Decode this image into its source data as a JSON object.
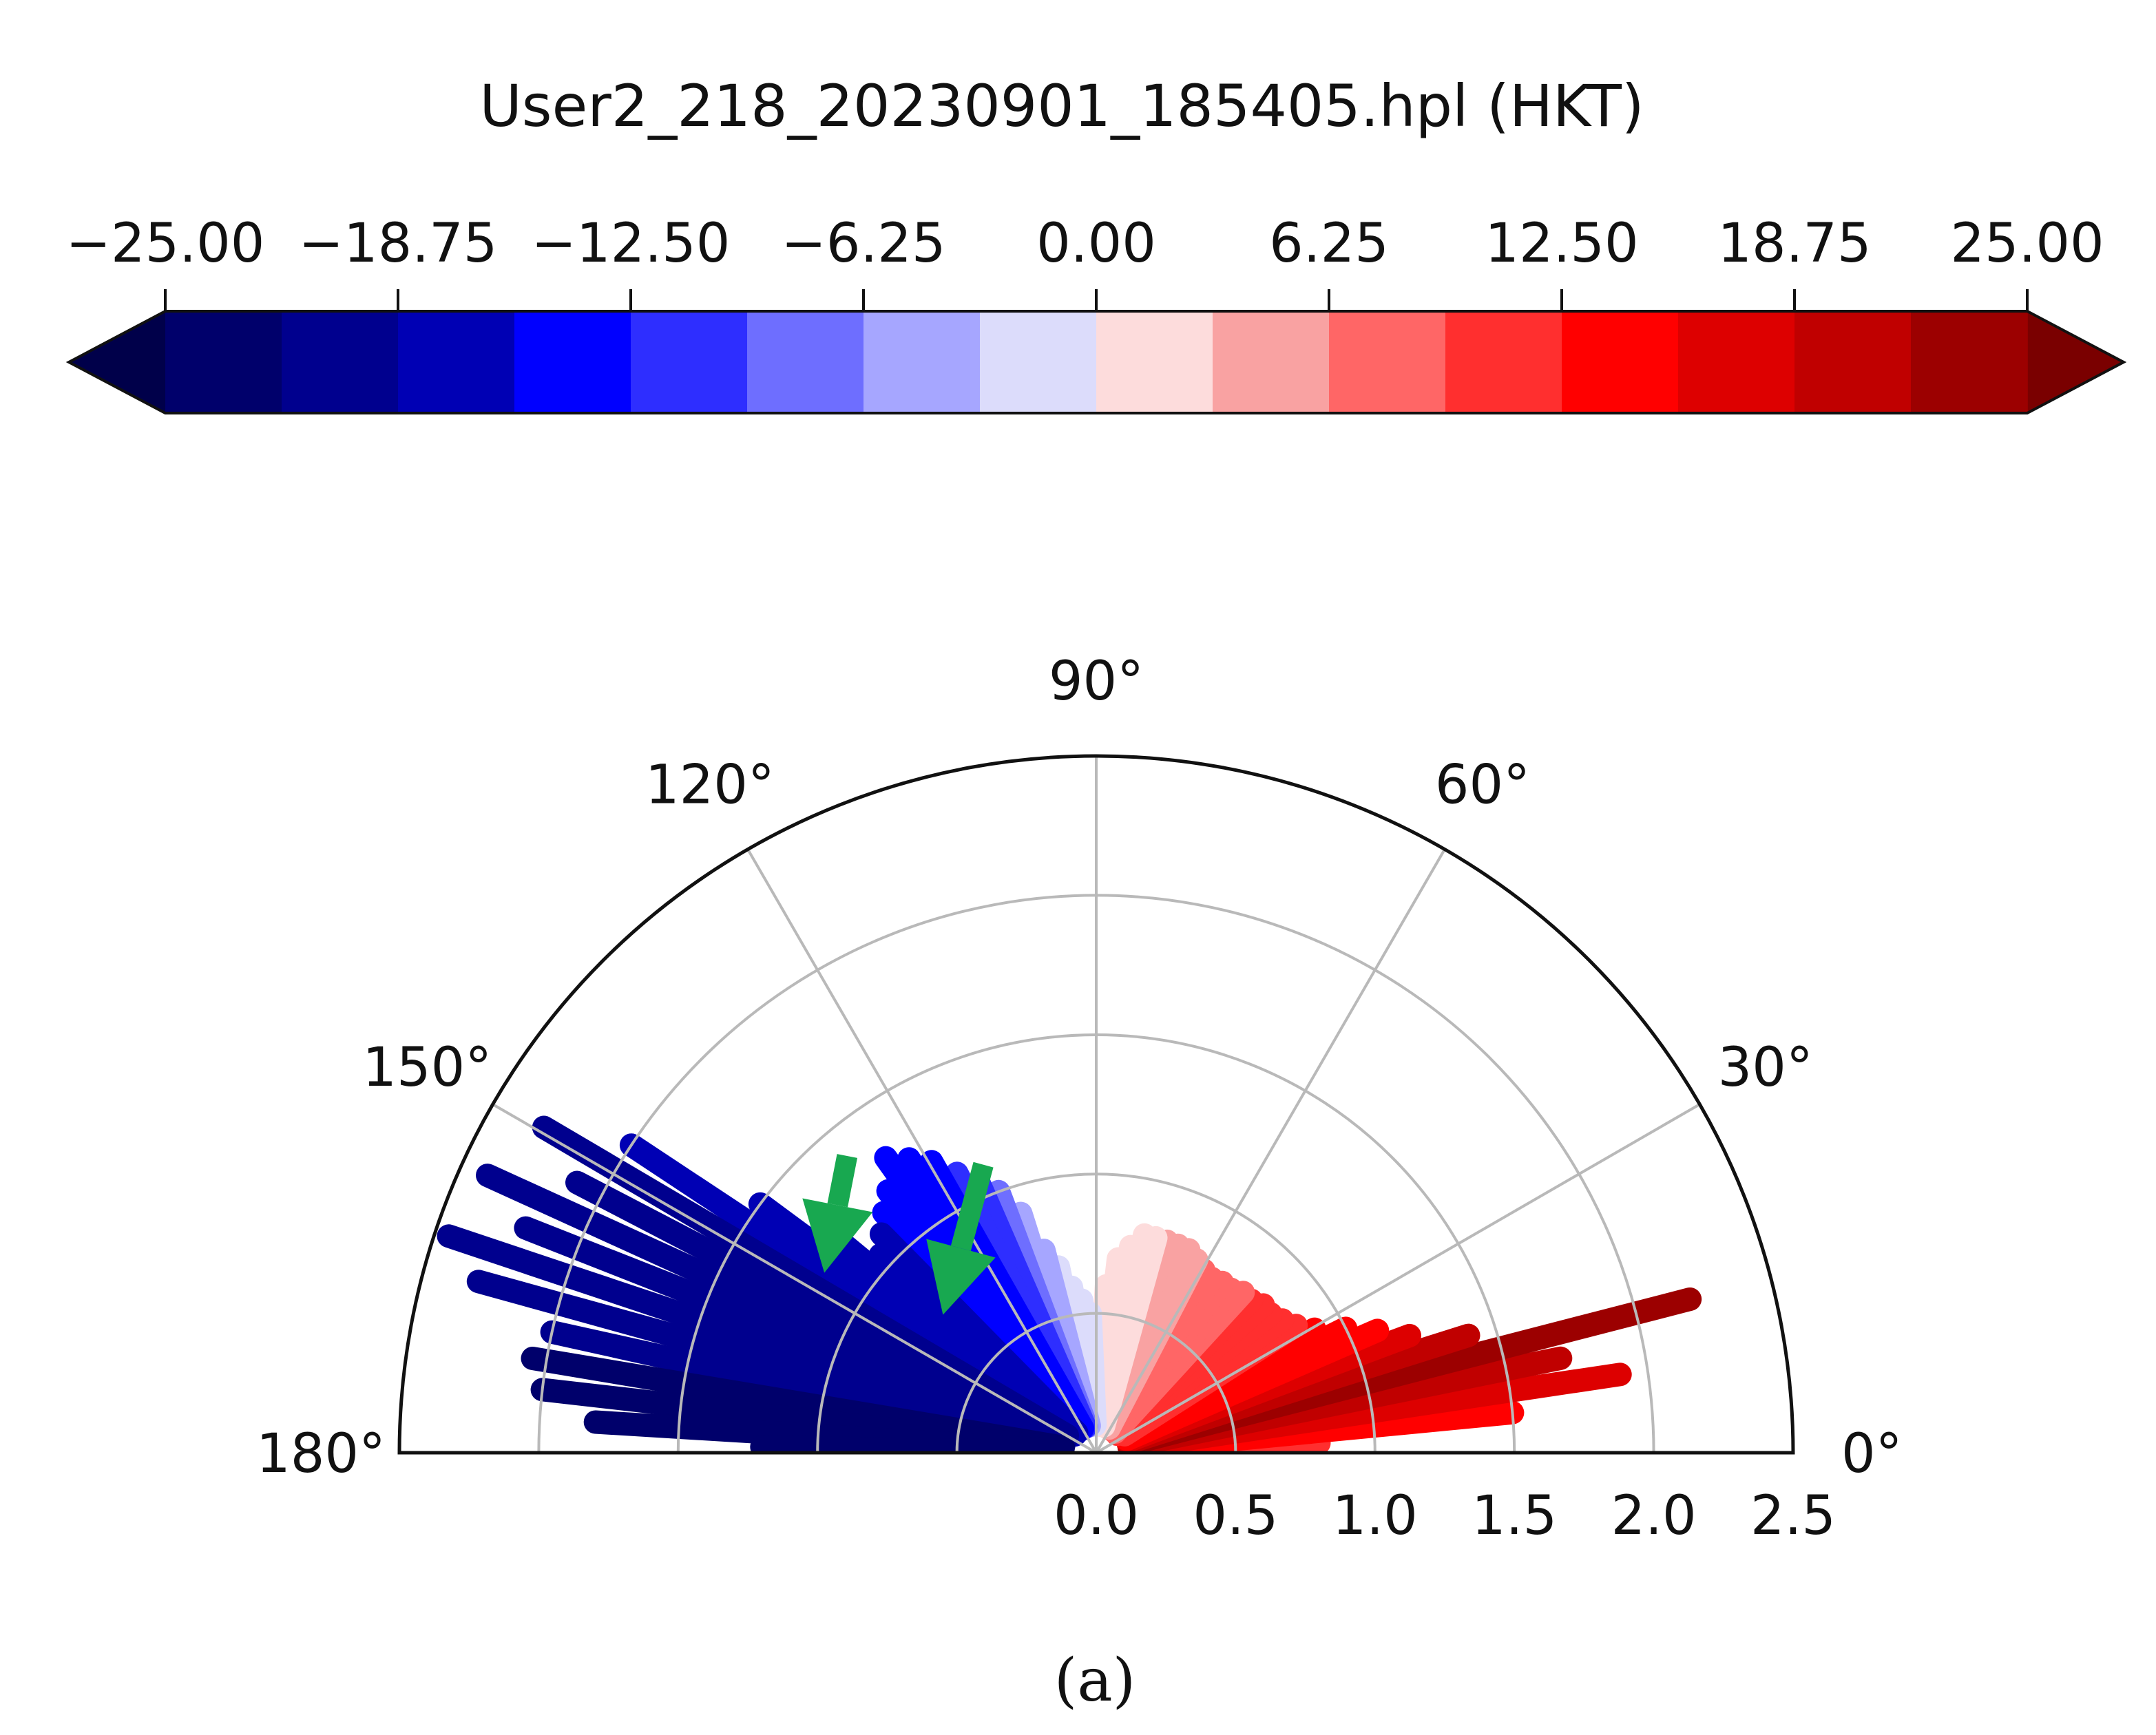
{
  "chart_data": {
    "type": "heatmap",
    "subtype": "polar-semicircle-scan",
    "title": "User2_218_20230901_185405.hpl (HKT)",
    "panel_label": "(a)",
    "colorbar": {
      "orientation": "horizontal",
      "location": "top",
      "extend": "both",
      "vmin": -25.0,
      "vmax": 25.0,
      "tick_values": [
        -25.0,
        -18.75,
        -12.5,
        -6.25,
        0.0,
        6.25,
        12.5,
        18.75,
        25.0
      ],
      "tick_labels": [
        "−25.00",
        "−18.75",
        "−12.50",
        "−6.25",
        "0.00",
        "6.25",
        "12.50",
        "18.75",
        "25.00"
      ],
      "levels": [
        -25.0,
        -21.875,
        -18.75,
        -15.625,
        -12.5,
        -9.375,
        -6.25,
        -3.125,
        0.0,
        3.125,
        6.25,
        9.375,
        12.5,
        15.625,
        18.75,
        21.875,
        25.0
      ],
      "colors": [
        "#00006b",
        "#00008e",
        "#0000b4",
        "#0000ff",
        "#2e2eff",
        "#6e6eff",
        "#a6a6ff",
        "#dcdcfb",
        "#fddcdc",
        "#f9a2a2",
        "#ff6666",
        "#ff2f2f",
        "#ff0000",
        "#dd0000",
        "#c00000",
        "#9c0000"
      ],
      "under_color": "#00004a",
      "over_color": "#7a0000"
    },
    "polar": {
      "theta_range_deg": [
        0,
        180
      ],
      "theta_ticks_deg": [
        0,
        30,
        60,
        90,
        120,
        150,
        180
      ],
      "theta_tick_labels": [
        "0°",
        "30°",
        "60°",
        "90°",
        "120°",
        "150°",
        "180°"
      ],
      "r_range": [
        0.0,
        2.5
      ],
      "r_ticks": [
        0.0,
        0.5,
        1.0,
        1.5,
        2.0,
        2.5
      ],
      "r_tick_labels": [
        "0.0",
        "0.5",
        "1.0",
        "1.5",
        "2.0",
        "2.5"
      ],
      "grid": true
    },
    "beams": [
      {
        "theta": 2.5,
        "r_min": 0.12,
        "r_max": 0.8,
        "value": 10
      },
      {
        "theta": 5.5,
        "r_min": 0.12,
        "r_max": 1.5,
        "value": 14
      },
      {
        "theta": 8.5,
        "r_min": 0.12,
        "r_max": 1.9,
        "value": 17
      },
      {
        "theta": 11.5,
        "r_min": 0.12,
        "r_max": 1.7,
        "value": 19
      },
      {
        "theta": 14.5,
        "r_min": 0.12,
        "r_max": 2.2,
        "value": 22
      },
      {
        "theta": 17.5,
        "r_min": 0.12,
        "r_max": 1.4,
        "value": 19
      },
      {
        "theta": 20.5,
        "r_min": 0.12,
        "r_max": 1.2,
        "value": 17
      },
      {
        "theta": 23.5,
        "r_min": 0.12,
        "r_max": 1.1,
        "value": 15
      },
      {
        "theta": 26.5,
        "r_min": 0.12,
        "r_max": 1.0,
        "value": 14
      },
      {
        "theta": 29.5,
        "r_min": 0.12,
        "r_max": 0.9,
        "value": 13
      },
      {
        "theta": 32.5,
        "r_min": 0.12,
        "r_max": 0.85,
        "value": 12
      },
      {
        "theta": 35.5,
        "r_min": 0.12,
        "r_max": 0.82,
        "value": 12
      },
      {
        "theta": 38.5,
        "r_min": 0.12,
        "r_max": 0.8,
        "value": 11
      },
      {
        "theta": 41.5,
        "r_min": 0.1,
        "r_max": 0.8,
        "value": 10
      },
      {
        "theta": 44.5,
        "r_min": 0.1,
        "r_max": 0.78,
        "value": 10
      },
      {
        "theta": 47.5,
        "r_min": 0.1,
        "r_max": 0.78,
        "value": 9
      },
      {
        "theta": 50.5,
        "r_min": 0.1,
        "r_max": 0.76,
        "value": 8
      },
      {
        "theta": 53.5,
        "r_min": 0.1,
        "r_max": 0.76,
        "value": 8
      },
      {
        "theta": 56.5,
        "r_min": 0.1,
        "r_max": 0.75,
        "value": 7
      },
      {
        "theta": 59.5,
        "r_min": 0.1,
        "r_max": 0.76,
        "value": 7
      },
      {
        "theta": 62.5,
        "r_min": 0.1,
        "r_max": 0.78,
        "value": 6
      },
      {
        "theta": 65.5,
        "r_min": 0.1,
        "r_max": 0.8,
        "value": 5
      },
      {
        "theta": 68.5,
        "r_min": 0.1,
        "r_max": 0.8,
        "value": 4
      },
      {
        "theta": 71.5,
        "r_min": 0.1,
        "r_max": 0.8,
        "value": 4
      },
      {
        "theta": 74.5,
        "r_min": 0.1,
        "r_max": 0.8,
        "value": 3
      },
      {
        "theta": 77.5,
        "r_min": 0.1,
        "r_max": 0.8,
        "value": 3
      },
      {
        "theta": 80.5,
        "r_min": 0.1,
        "r_max": 0.75,
        "value": 2
      },
      {
        "theta": 83.5,
        "r_min": 0.1,
        "r_max": 0.7,
        "value": 1.5
      },
      {
        "theta": 86.5,
        "r_min": 0.1,
        "r_max": 0.6,
        "value": 1
      },
      {
        "theta": 89.5,
        "r_min": 0.1,
        "r_max": 0.5,
        "value": 0.5
      },
      {
        "theta": 92.5,
        "r_min": 0.1,
        "r_max": 0.5,
        "value": -0.5
      },
      {
        "theta": 95.5,
        "r_min": 0.1,
        "r_max": 0.55,
        "value": -1
      },
      {
        "theta": 98.5,
        "r_min": 0.1,
        "r_max": 0.6,
        "value": -2
      },
      {
        "theta": 101.5,
        "r_min": 0.1,
        "r_max": 0.68,
        "value": -3
      },
      {
        "theta": 104.5,
        "r_min": 0.1,
        "r_max": 0.75,
        "value": -4
      },
      {
        "theta": 107.5,
        "r_min": 0.1,
        "r_max": 0.9,
        "value": -6
      },
      {
        "theta": 110.5,
        "r_min": 0.1,
        "r_max": 1.0,
        "value": -8
      },
      {
        "theta": 113.5,
        "r_min": 0.1,
        "r_max": 1.05,
        "value": -10
      },
      {
        "theta": 116.5,
        "r_min": 0.1,
        "r_max": 1.12,
        "value": -12
      },
      {
        "theta": 119.5,
        "r_min": 0.1,
        "r_max": 1.2,
        "value": -13
      },
      {
        "theta": 122.5,
        "r_min": 0.1,
        "r_max": 1.25,
        "value": -14
      },
      {
        "theta": 125.5,
        "r_min": 0.1,
        "r_max": 1.3,
        "value": -14
      },
      {
        "theta": 128.5,
        "r_min": 0.1,
        "r_max": 1.2,
        "value": -15
      },
      {
        "theta": 131.5,
        "r_min": 0.1,
        "r_max": 1.15,
        "value": -15
      },
      {
        "theta": 134.5,
        "r_min": 0.1,
        "r_max": 1.1,
        "value": -16
      },
      {
        "theta": 137.5,
        "r_min": 0.1,
        "r_max": 1.05,
        "value": -16
      },
      {
        "theta": 140.5,
        "r_min": 0.1,
        "r_max": 1.2,
        "value": -16
      },
      {
        "theta": 143.5,
        "r_min": 0.12,
        "r_max": 1.5,
        "value": -17
      },
      {
        "theta": 146.5,
        "r_min": 0.12,
        "r_max": 2.0,
        "value": -18
      },
      {
        "theta": 149.5,
        "r_min": 0.12,
        "r_max": 2.3,
        "value": -19
      },
      {
        "theta": 152.5,
        "r_min": 0.12,
        "r_max": 2.1,
        "value": -19
      },
      {
        "theta": 155.5,
        "r_min": 0.12,
        "r_max": 2.4,
        "value": -20
      },
      {
        "theta": 158.5,
        "r_min": 0.12,
        "r_max": 2.2,
        "value": -20
      },
      {
        "theta": 161.5,
        "r_min": 0.12,
        "r_max": 2.45,
        "value": -21
      },
      {
        "theta": 164.5,
        "r_min": 0.12,
        "r_max": 2.3,
        "value": -21
      },
      {
        "theta": 167.5,
        "r_min": 0.12,
        "r_max": 2.0,
        "value": -21
      },
      {
        "theta": 170.5,
        "r_min": 0.12,
        "r_max": 2.05,
        "value": -22
      },
      {
        "theta": 173.5,
        "r_min": 0.12,
        "r_max": 2.0,
        "value": -22
      },
      {
        "theta": 176.5,
        "r_min": 0.12,
        "r_max": 1.8,
        "value": -22
      },
      {
        "theta": 179.0,
        "r_min": 0.12,
        "r_max": 1.2,
        "value": -22
      }
    ],
    "annotations": [
      {
        "type": "arrow",
        "color": "#18a850",
        "tail_theta_deg": 130.0,
        "tail_r": 1.39,
        "head_theta_deg": 146.5,
        "head_r": 1.17,
        "label": ""
      },
      {
        "type": "arrow",
        "color": "#18a850",
        "tail_theta_deg": 111.4,
        "tail_r": 1.11,
        "head_theta_deg": 138.0,
        "head_r": 0.74,
        "label": ""
      }
    ]
  }
}
